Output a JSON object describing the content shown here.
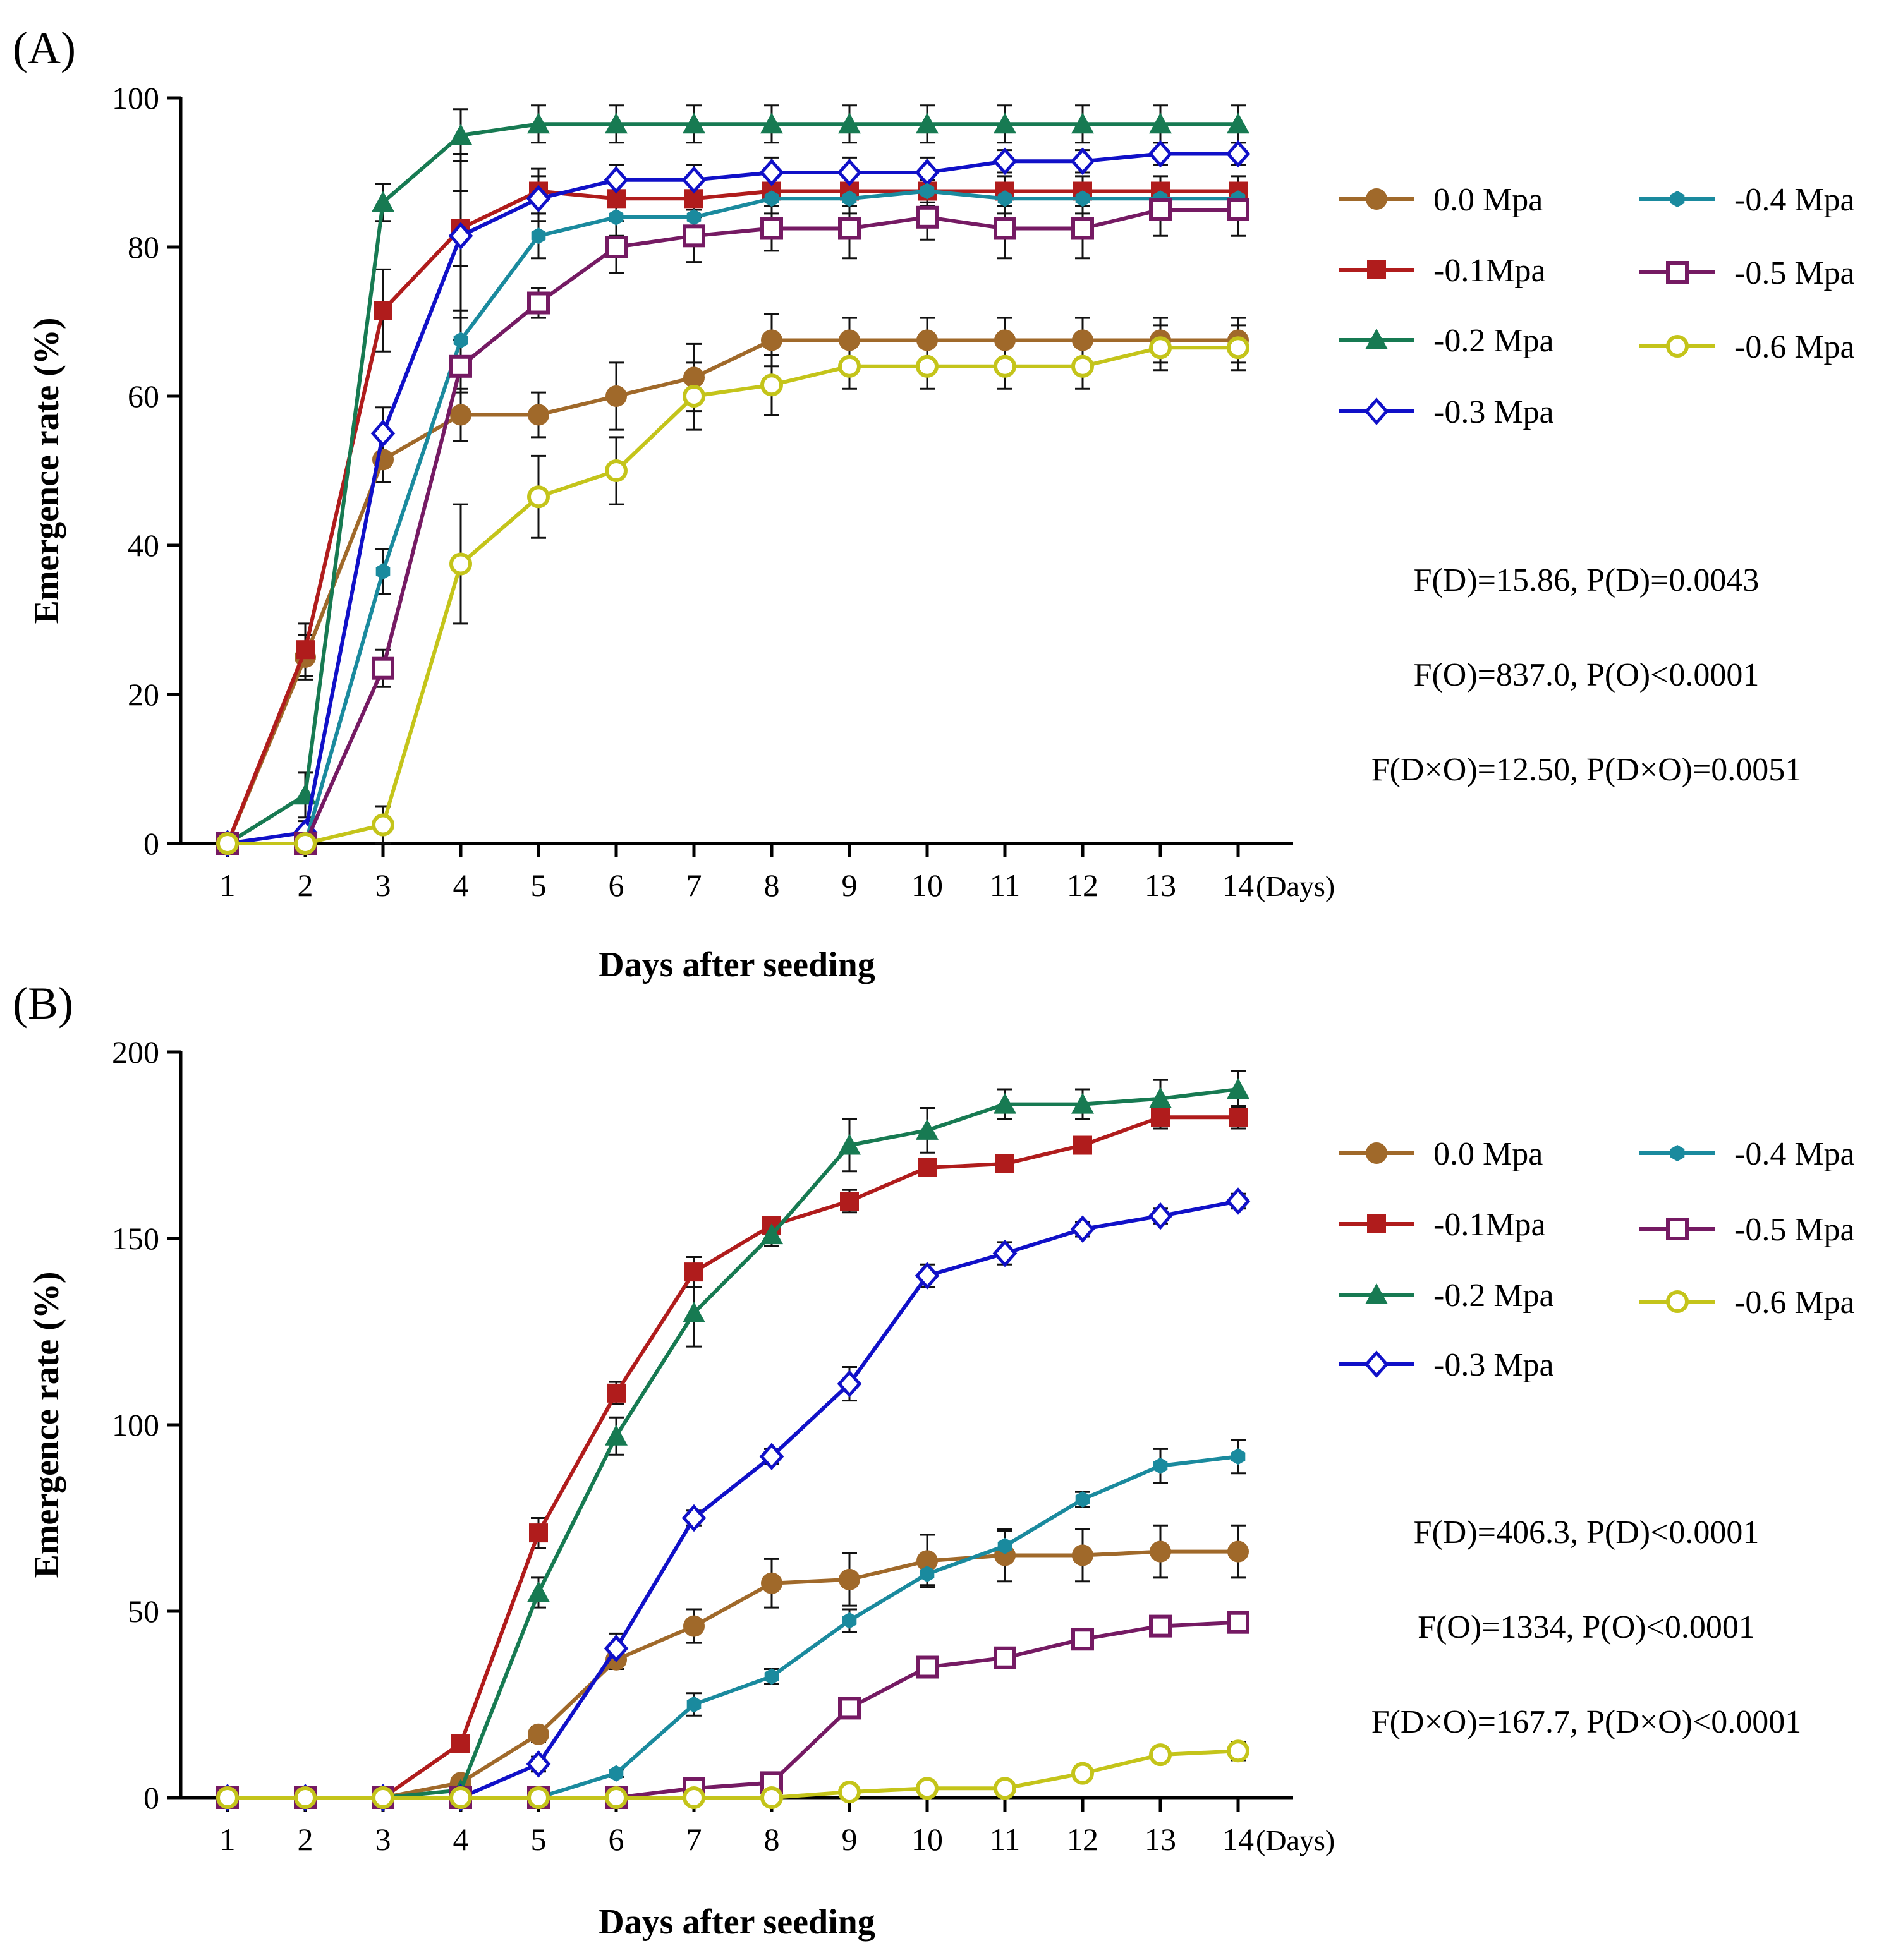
{
  "chart_data": [
    {
      "panel_label": "(A)",
      "type": "line",
      "xlabel": "Days after seeding",
      "ylabel": "Emergence rate (%)",
      "x_unit": "(Days)",
      "x": [
        1,
        2,
        3,
        4,
        5,
        6,
        7,
        8,
        9,
        10,
        11,
        12,
        13,
        14
      ],
      "ylim": [
        0,
        100
      ],
      "yticks": [
        0,
        20,
        40,
        60,
        80,
        100
      ],
      "series": [
        {
          "name": "0.0 Mpa",
          "color": "#A0692A",
          "marker": "circle",
          "values": [
            0,
            25,
            51.5,
            57.5,
            57.5,
            60,
            62.5,
            67.5,
            67.5,
            67.5,
            67.5,
            67.5,
            67.5,
            67.5
          ],
          "errors": [
            0,
            3,
            3,
            3.5,
            3,
            4.5,
            4.5,
            3.5,
            3,
            3,
            3,
            3,
            3,
            3
          ]
        },
        {
          "name": "-0.1Mpa",
          "color": "#B01C1C",
          "marker": "square",
          "values": [
            0,
            26,
            71.5,
            82.5,
            87.5,
            86.5,
            86.5,
            87.5,
            87.5,
            87.5,
            87.5,
            87.5,
            87.5,
            87.5
          ],
          "errors": [
            0,
            3.5,
            5.5,
            5,
            3,
            2.5,
            2.5,
            2,
            2,
            2,
            2,
            2,
            2,
            2
          ]
        },
        {
          "name": "-0.2 Mpa",
          "color": "#177A52",
          "marker": "triangle",
          "values": [
            0,
            6.5,
            86,
            95,
            96.5,
            96.5,
            96.5,
            96.5,
            96.5,
            96.5,
            96.5,
            96.5,
            96.5,
            96.5
          ],
          "errors": [
            0,
            3,
            2.5,
            3.5,
            2.5,
            2.5,
            2.5,
            2.5,
            2.5,
            2.5,
            2.5,
            2.5,
            2.5,
            2.5
          ]
        },
        {
          "name": "-0.3 Mpa",
          "color": "#1010C8",
          "marker": "diamond-open",
          "values": [
            0,
            1.5,
            55,
            81.5,
            86.5,
            89,
            89,
            90,
            90,
            90,
            91.5,
            91.5,
            92.5,
            92.5
          ],
          "errors": [
            0,
            1.5,
            3.5,
            11,
            3,
            2,
            2,
            2,
            2,
            2,
            1.5,
            1.5,
            1.5,
            1.5
          ]
        },
        {
          "name": "-0.4 Mpa",
          "color": "#1A8A9E",
          "marker": "hexagon",
          "values": [
            0,
            0,
            36.5,
            67.5,
            81.5,
            84,
            84,
            86.5,
            86.5,
            87.5,
            86.5,
            86.5,
            86.5,
            86.5
          ],
          "errors": [
            0,
            0,
            3,
            4,
            3,
            2.5,
            2.5,
            2,
            2,
            1.5,
            2,
            2,
            2,
            2
          ]
        },
        {
          "name": "-0.5 Mpa",
          "color": "#751A63",
          "marker": "square-open",
          "values": [
            0,
            0,
            23.5,
            64,
            72.5,
            80,
            81.5,
            82.5,
            82.5,
            84,
            82.5,
            82.5,
            85,
            85
          ],
          "errors": [
            0,
            0,
            2.5,
            3.5,
            2,
            3.5,
            3.5,
            3,
            4,
            3,
            4,
            4,
            3.5,
            3.5
          ]
        },
        {
          "name": "-0.6 Mpa",
          "color": "#C4C41A",
          "marker": "circle-open",
          "values": [
            0,
            0,
            2.5,
            37.5,
            46.5,
            50,
            60,
            61.5,
            64,
            64,
            64,
            64,
            66.5,
            66.5
          ],
          "errors": [
            0,
            0,
            2.5,
            8,
            5.5,
            4.5,
            4.5,
            4,
            3,
            3,
            3,
            3,
            3,
            3
          ]
        }
      ],
      "annotations": [
        "F(D)=15.86, P(D)=0.0043",
        "F(O)=837.0, P(O)<0.0001",
        "F(D×O)=12.50, P(D×O)=0.0051"
      ]
    },
    {
      "panel_label": "(B)",
      "type": "line",
      "xlabel": "Days after seeding",
      "ylabel": "Emergence rate (%)",
      "x_unit": "(Days)",
      "x": [
        1,
        2,
        3,
        4,
        5,
        6,
        7,
        8,
        9,
        10,
        11,
        12,
        13,
        14
      ],
      "ylim": [
        0,
        200
      ],
      "yticks": [
        0,
        50,
        100,
        150,
        200
      ],
      "series": [
        {
          "name": "0.0 Mpa",
          "color": "#A0692A",
          "marker": "circle",
          "values": [
            0,
            0,
            0,
            4,
            17,
            37,
            46,
            57.5,
            58.5,
            63.5,
            65,
            65,
            66,
            66
          ],
          "errors": [
            0,
            0,
            0,
            1.5,
            2,
            2.5,
            4.5,
            6.5,
            7,
            7,
            7,
            7,
            7,
            7
          ]
        },
        {
          "name": "-0.1Mpa",
          "color": "#B01C1C",
          "marker": "square",
          "values": [
            0,
            0,
            0,
            14.5,
            71,
            108.5,
            141,
            153.5,
            160,
            169,
            170,
            175,
            182.5,
            182.5
          ],
          "errors": [
            0,
            0,
            0,
            2,
            4,
            3,
            4,
            2,
            3,
            2,
            2,
            2,
            3,
            3
          ]
        },
        {
          "name": "-0.2 Mpa",
          "color": "#177A52",
          "marker": "triangle",
          "values": [
            0,
            0,
            0,
            2,
            55,
            97,
            130,
            151,
            175,
            179,
            186,
            186,
            187.5,
            190
          ],
          "errors": [
            0,
            0,
            0,
            1,
            4,
            5,
            9,
            3,
            7,
            6,
            4,
            4,
            5,
            5
          ]
        },
        {
          "name": "-0.3 Mpa",
          "color": "#1010C8",
          "marker": "diamond-open",
          "values": [
            0,
            0,
            0,
            0,
            9,
            40,
            75,
            91.5,
            111,
            140,
            146,
            152.5,
            156,
            160
          ],
          "errors": [
            0,
            0,
            0,
            0,
            2,
            4,
            2,
            2,
            4.5,
            3,
            3,
            2,
            2,
            2
          ]
        },
        {
          "name": "-0.4 Mpa",
          "color": "#1A8A9E",
          "marker": "hexagon",
          "values": [
            0,
            0,
            0,
            0,
            0,
            6.5,
            25,
            32.5,
            47.5,
            60,
            67.5,
            80,
            89,
            91.5
          ],
          "errors": [
            0,
            0,
            0,
            0,
            0,
            1,
            3,
            2,
            3,
            3,
            4,
            2,
            4.5,
            4.5
          ]
        },
        {
          "name": "-0.5 Mpa",
          "color": "#751A63",
          "marker": "square-open",
          "values": [
            0,
            0,
            0,
            0,
            0,
            0,
            2.5,
            4,
            24,
            35,
            37.5,
            42.5,
            46,
            47
          ],
          "errors": [
            0,
            0,
            0,
            0,
            0,
            0,
            1,
            1,
            2.5,
            2.5,
            2,
            2,
            2,
            2
          ]
        },
        {
          "name": "-0.6 Mpa",
          "color": "#C4C41A",
          "marker": "circle-open",
          "values": [
            0,
            0,
            0,
            0,
            0,
            0,
            0,
            0,
            1.5,
            2.5,
            2.5,
            6.5,
            11.5,
            12.5
          ],
          "errors": [
            0,
            0,
            0,
            0,
            0,
            0,
            0,
            0,
            1,
            1,
            1,
            1.5,
            2,
            2.5
          ]
        }
      ],
      "annotations": [
        "F(D)=406.3, P(D)<0.0001",
        "F(O)=1334, P(O)<0.0001",
        "F(D×O)=167.7, P(D×O)<0.0001"
      ]
    }
  ]
}
